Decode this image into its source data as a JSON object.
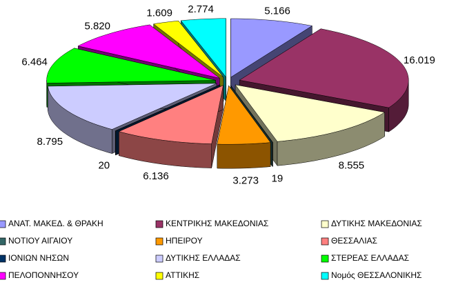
{
  "chart_data": {
    "type": "pie3d",
    "categories": [
      "ΑΝΑΤ. ΜΑΚΕΔ. & ΘΡΑΚΗ",
      "ΚΕΝΤΡΙΚΗΣ ΜΑΚΕΔΟΝΙΑΣ",
      "ΔΥΤΙΚΗΣ ΜΑΚΕΔΟΝΙΑΣ",
      "ΝΟΤΙΟΥ ΑΙΓΑΙΟΥ",
      "ΗΠΕΙΡΟΥ",
      "ΘΕΣΣΑΛΙΑΣ",
      "ΙΟΝΙΩΝ ΝΗΣΩΝ",
      "ΔΥΤΙΚΗΣ ΕΛΛΑΔΑΣ",
      "ΣΤΕΡΕΑΣ ΕΛΛΑΔΑΣ",
      "ΠΕΛΟΠΟΝΝΗΣΟΥ",
      "ΑΤΤΙΚΗΣ",
      "Νομός ΘΕΣΣΑΛΟΝΙΚΗΣ"
    ],
    "values": [
      5166,
      16019,
      8555,
      19,
      3273,
      6136,
      20,
      8795,
      6464,
      5820,
      1609,
      2774
    ],
    "value_labels": [
      "5.166",
      "16.019",
      "8.555",
      "19",
      "3.273",
      "6.136",
      "20",
      "8.795",
      "6.464",
      "5.820",
      "1.609",
      "2.774"
    ],
    "colors": [
      "#9999ff",
      "#993366",
      "#ffffcc",
      "#336666",
      "#ff9900",
      "#ff8080",
      "#003366",
      "#ccccff",
      "#00ff00",
      "#ff00ff",
      "#ffff00",
      "#00ffff"
    ],
    "legend": "bottom"
  }
}
